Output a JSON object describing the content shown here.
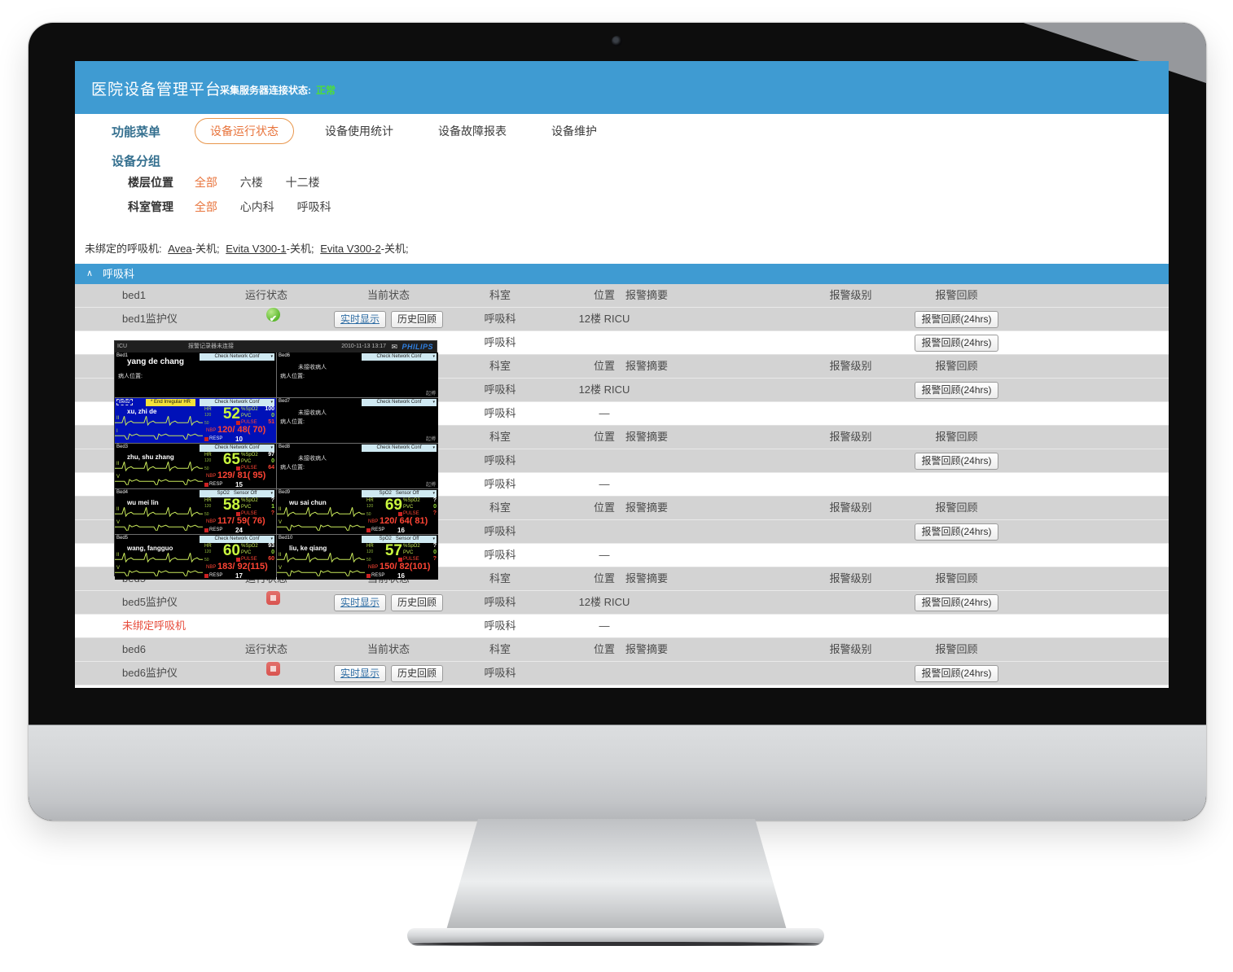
{
  "header": {
    "title": "医院设备管理平台",
    "server_status_label": "采集服务器连接状态:",
    "server_status_value": "正常"
  },
  "nav": {
    "menu_label": "功能菜单",
    "active_tab": "设备运行状态",
    "tabs": [
      "设备使用统计",
      "设备故障报表",
      "设备维护"
    ]
  },
  "grouping": {
    "title": "设备分组",
    "filters": [
      {
        "label": "楼层位置",
        "options": [
          {
            "label": "全部",
            "selected": true
          },
          {
            "label": "六楼",
            "selected": false
          },
          {
            "label": "十二楼",
            "selected": false
          }
        ]
      },
      {
        "label": "科室管理",
        "options": [
          {
            "label": "全部",
            "selected": true
          },
          {
            "label": "心内科",
            "selected": false
          },
          {
            "label": "呼吸科",
            "selected": false
          }
        ]
      }
    ]
  },
  "unbound": {
    "prefix": "未绑定的呼吸机:",
    "items": [
      {
        "link": "Avea",
        "suffix": "-关机;"
      },
      {
        "link": "Evita V300-1",
        "suffix": "-关机;"
      },
      {
        "link": "Evita V300-2",
        "suffix": "-关机;"
      }
    ]
  },
  "section": {
    "title": "呼吸科"
  },
  "table": {
    "columns": [
      "运行状态",
      "当前状态",
      "科室",
      "位置",
      "报警摘要",
      "报警级别",
      "报警回顾"
    ],
    "buttons": {
      "realtime": "实时显示",
      "history": "历史回顾",
      "review": "报警回顾(24hrs)"
    },
    "rows": [
      {
        "kind": "header",
        "bed": "bed1"
      },
      {
        "kind": "device",
        "bg": "gray",
        "name": "bed1监护仪",
        "status": "running",
        "actions": true,
        "dept": "呼吸科",
        "loc": "12楼 RICU",
        "review": true,
        "red": false
      },
      {
        "kind": "device",
        "bg": "white",
        "name": "",
        "status": null,
        "actions": false,
        "dept": "呼吸科",
        "loc": "",
        "review": true,
        "red": false
      },
      {
        "kind": "header",
        "bed": ""
      },
      {
        "kind": "device",
        "bg": "gray",
        "name": "",
        "status": null,
        "actions": false,
        "dept": "呼吸科",
        "loc": "12楼 RICU",
        "review": true,
        "red": false
      },
      {
        "kind": "device",
        "bg": "white",
        "name": "",
        "status": null,
        "actions": false,
        "dept": "呼吸科",
        "loc": "—",
        "review": false,
        "red": false
      },
      {
        "kind": "header",
        "bed": ""
      },
      {
        "kind": "device",
        "bg": "gray",
        "name": "",
        "status": null,
        "actions": false,
        "dept": "呼吸科",
        "loc": "",
        "review": true,
        "red": false
      },
      {
        "kind": "device",
        "bg": "white",
        "name": "",
        "status": null,
        "actions": false,
        "dept": "呼吸科",
        "loc": "—",
        "review": false,
        "red": false
      },
      {
        "kind": "header",
        "bed": ""
      },
      {
        "kind": "device",
        "bg": "gray",
        "name": "",
        "status": null,
        "actions": false,
        "dept": "呼吸科",
        "loc": "",
        "review": true,
        "red": false
      },
      {
        "kind": "device",
        "bg": "white",
        "name": "",
        "status": null,
        "actions": false,
        "dept": "呼吸科",
        "loc": "—",
        "review": false,
        "red": false
      },
      {
        "kind": "header",
        "bed": "bed5"
      },
      {
        "kind": "device",
        "bg": "gray",
        "name": "bed5监护仪",
        "status": "stopped",
        "actions": true,
        "dept": "呼吸科",
        "loc": "12楼 RICU",
        "review": true,
        "red": false
      },
      {
        "kind": "device",
        "bg": "white",
        "name": "未绑定呼吸机",
        "status": null,
        "actions": false,
        "dept": "呼吸科",
        "loc": "—",
        "review": false,
        "red": true
      },
      {
        "kind": "header",
        "bed": "bed6"
      },
      {
        "kind": "device",
        "bg": "gray",
        "name": "bed6监护仪",
        "status": "stopped",
        "actions": true,
        "dept": "呼吸科",
        "loc": "",
        "review": true,
        "red": false
      }
    ]
  },
  "monitor_popup": {
    "topbar": {
      "left": "ICU",
      "center": "报警记录器未连接",
      "datetime": "2010-11-13 13:17",
      "brand": "PHILIPS"
    },
    "labels": {
      "hr": "HR",
      "spo2": "%SpO2",
      "pvc": "PVC",
      "pulse": "PULSE",
      "nbp": "NBP",
      "resp": "RESP",
      "hr_high": "120",
      "hr_low": "50",
      "patient_location": "病人位置:",
      "no_patient": "未接收病人",
      "corner": "起搏"
    },
    "beds": [
      {
        "id": "Bed1",
        "type": "named",
        "name": "yang de chang",
        "dropdown": "Check Network Conf"
      },
      {
        "id": "Bed6",
        "type": "empty",
        "dropdown": "Check Network Conf"
      },
      {
        "id": "Bed2",
        "type": "active",
        "selected": true,
        "alert": "* End Irregular HR",
        "dropdown": "Check Network Conf",
        "name": "xu, zhi de",
        "wave1": "II",
        "wave2": "I",
        "hr": "52",
        "spo2": "100",
        "pvc": "0",
        "pulse": "51",
        "nbp": "120/ 48( 70)",
        "resp": "10"
      },
      {
        "id": "Bed7",
        "type": "empty",
        "dropdown": "Check Network Conf"
      },
      {
        "id": "Bed3",
        "type": "active",
        "dropdown": "Check Network Conf",
        "name": "zhu, shu zhang",
        "wave1": "II",
        "wave2": "V",
        "hr": "65",
        "spo2": "97",
        "pvc": "0",
        "pulse": "64",
        "nbp": "129/ 81( 95)",
        "resp": "15"
      },
      {
        "id": "Bed8",
        "type": "empty",
        "dropdown": "Check Network Conf"
      },
      {
        "id": "Bed4",
        "type": "active",
        "dropdown": "SpO2   Sensor Off",
        "name": "wu mei lin",
        "wave1": "II",
        "wave2": "V",
        "hr": "58",
        "spo2": "?",
        "pvc": "1",
        "pulse": "?",
        "nbp": "117/ 59( 76)",
        "resp": "24"
      },
      {
        "id": "Bed9",
        "type": "active",
        "dropdown": "SpO2   Sensor Off",
        "name": "wu sai chun",
        "wave1": "II",
        "wave2": "V",
        "hr": "69",
        "spo2": "?",
        "pvc": "0",
        "pulse": "?",
        "nbp": "120/ 64( 81)",
        "resp": "16"
      },
      {
        "id": "Bed5",
        "type": "active",
        "dropdown": "Check Network Conf",
        "name": "wang, fangguo",
        "wave1": "II",
        "wave2": "V",
        "hr": "60",
        "spo2": "93",
        "pvc": "0",
        "pulse": "60",
        "nbp": "183/ 92(115)",
        "resp": "17"
      },
      {
        "id": "Bed10",
        "type": "active",
        "dropdown": "SpO2   Sensor Off",
        "name": "liu, ke qiang",
        "wave1": "II",
        "wave2": "V",
        "hr": "57",
        "spo2": "?",
        "pvc": "0",
        "pulse": "?",
        "nbp": "150/ 82(101)",
        "resp": "16"
      }
    ]
  }
}
